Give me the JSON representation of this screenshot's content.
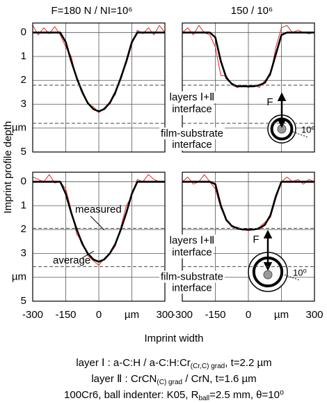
{
  "chart_data": {
    "type": "line",
    "ylabel": "Imprint profile depth",
    "xlabel": "Imprint width",
    "xlim": [
      -300,
      300
    ],
    "xticks": [
      -300,
      -150,
      0,
      {
        "value": 150,
        "label": "µm"
      },
      300
    ],
    "ylim": [
      -0.4,
      5
    ],
    "yticks": [
      0,
      1,
      2,
      3,
      {
        "value": 4,
        "label": "µm"
      },
      5
    ],
    "grid": true,
    "x": [
      -300,
      -275,
      -250,
      -225,
      -200,
      -175,
      -150,
      -125,
      -100,
      -75,
      -50,
      -25,
      0,
      25,
      50,
      75,
      100,
      125,
      150,
      175,
      200,
      225,
      250,
      275,
      300
    ],
    "rows": [
      {
        "interfaces": [
          2.2,
          3.8
        ],
        "annotations": [
          "layers Ⅰ+Ⅱ",
          "interface",
          "film-substrate",
          "interface"
        ]
      },
      {
        "interfaces": [
          1.95,
          3.55
        ],
        "annotations": [
          "layers Ⅰ+Ⅱ",
          "interface",
          "film-substrate",
          "interface"
        ]
      }
    ],
    "panels": [
      {
        "title": "F=180 N / NI=10⁶",
        "series": [
          {
            "color": "#e8251f",
            "values": [
              -0.3,
              0.1,
              -0.2,
              0.05,
              -0.25,
              0.1,
              0.6,
              1.0,
              2.0,
              2.4,
              3.0,
              3.1,
              3.35,
              3.15,
              2.9,
              2.6,
              1.8,
              1.3,
              0.5,
              -0.1,
              0.05,
              -0.2,
              0.1,
              -0.3,
              0
            ]
          },
          {
            "color": "#000000",
            "values": [
              0,
              0,
              0,
              0,
              0,
              0,
              0.4,
              1.2,
              1.9,
              2.5,
              2.95,
              3.2,
              3.3,
              3.2,
              2.95,
              2.5,
              1.9,
              1.2,
              0.4,
              0,
              0,
              0,
              0,
              0,
              0
            ]
          }
        ]
      },
      {
        "title": "150 / 10⁶",
        "force_label": "F",
        "angle_label": "10⁰",
        "series": [
          {
            "color": "#e8251f",
            "values": [
              0,
              -0.2,
              0.1,
              -0.3,
              0,
              0.1,
              0.6,
              1.8,
              1.8,
              2.2,
              2.3,
              2.2,
              2.3,
              2.2,
              2.3,
              2.0,
              1.8,
              0.6,
              -0.2,
              -0.3,
              0,
              -0.1,
              0,
              0.05,
              0
            ]
          },
          {
            "color": "#000000",
            "values": [
              0,
              0,
              0,
              0,
              0,
              0,
              0.2,
              1.2,
              1.9,
              2.15,
              2.25,
              2.25,
              2.25,
              2.25,
              2.2,
              2.1,
              1.7,
              0.9,
              0.1,
              0,
              0,
              0,
              0,
              0,
              0
            ]
          }
        ]
      },
      {
        "series": [
          {
            "name": "measured",
            "color": "#e8251f",
            "values": [
              -0.2,
              -0.1,
              0,
              -0.3,
              0.05,
              0,
              0.3,
              1.2,
              2.2,
              2.5,
              3.1,
              3.3,
              3.5,
              3.2,
              3.0,
              2.7,
              1.9,
              1.0,
              0.6,
              -0.1,
              0,
              -0.3,
              -0.1,
              0,
              0
            ]
          },
          {
            "name": "average",
            "color": "#000000",
            "values": [
              0,
              0,
              0,
              0,
              0,
              0,
              0.5,
              1.3,
              2.0,
              2.6,
              3.0,
              3.25,
              3.35,
              3.25,
              3.0,
              2.6,
              2.0,
              1.3,
              0.5,
              0,
              0,
              0,
              0,
              0,
              0
            ]
          }
        ]
      },
      {
        "force_label": "F",
        "angle_label": "10⁰",
        "series": [
          {
            "color": "#e8251f",
            "values": [
              0,
              -0.2,
              0.1,
              0,
              -0.3,
              0,
              0.3,
              1.1,
              1.6,
              1.9,
              1.9,
              2.0,
              2.05,
              2.0,
              1.9,
              1.7,
              1.5,
              0.7,
              0,
              -0.2,
              0,
              -0.1,
              0.1,
              -0.1,
              0
            ]
          },
          {
            "color": "#000000",
            "values": [
              0,
              0,
              0,
              0,
              0,
              0,
              0.1,
              1.0,
              1.6,
              1.85,
              1.95,
              2.0,
              2.0,
              2.0,
              1.95,
              1.8,
              1.4,
              0.6,
              0,
              0,
              0,
              0,
              0,
              0,
              0
            ]
          }
        ]
      }
    ]
  },
  "captions": [
    [
      {
        "t": "layer Ⅰ : a-C:H / a-C:H:Cr"
      },
      {
        "t": "(Cr,C) grad",
        "sub": true
      },
      {
        "t": ", t=2.2 µm"
      }
    ],
    [
      {
        "t": "layer Ⅱ : CrCN"
      },
      {
        "t": "(C) grad",
        "sub": true
      },
      {
        "t": " / CrN, t=1.6 µm"
      }
    ],
    [
      {
        "t": "100Cr6, ball indenter: K05, R"
      },
      {
        "t": "ball",
        "sub": true
      },
      {
        "t": "=2.5 mm, θ=10⁰"
      }
    ]
  ]
}
